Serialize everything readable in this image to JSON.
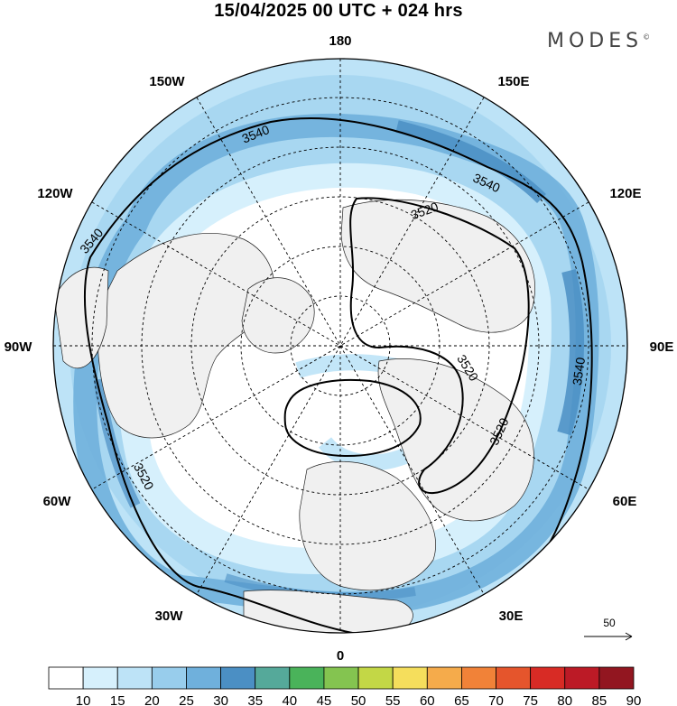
{
  "title": "15/04/2025  00 UTC  + 024 hrs",
  "brand": {
    "name": "MODES",
    "mark": "©"
  },
  "longitude_labels": [
    "180",
    "150E",
    "120E",
    "90E",
    "60E",
    "30E",
    "0",
    "30W",
    "60W",
    "90W",
    "120W",
    "150W"
  ],
  "contour_labels": [
    "3540",
    "3540",
    "3540",
    "3540",
    "3520",
    "3520",
    "3520"
  ],
  "reference_vector": {
    "label": "50"
  },
  "colorbar": {
    "labels": [
      "10",
      "15",
      "20",
      "25",
      "30",
      "35",
      "40",
      "45",
      "50",
      "55",
      "60",
      "65",
      "70",
      "75",
      "80",
      "85",
      "90"
    ],
    "colors": [
      "#ffffff",
      "#d6f0fc",
      "#bde3f7",
      "#98cdec",
      "#6fb0dc",
      "#4b8fc4",
      "#55a99a",
      "#4ab35a",
      "#84c450",
      "#c3d746",
      "#f5de5c",
      "#f5ab4b",
      "#f18238",
      "#e5552c",
      "#d82b25",
      "#bc1a26",
      "#921620"
    ]
  },
  "colors": {
    "land": "#f0f0f0",
    "contour": "#000000",
    "graticule": "#000000"
  }
}
